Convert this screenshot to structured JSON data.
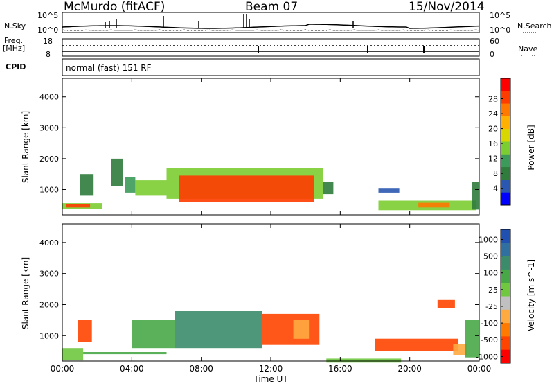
{
  "header": {
    "station": "McMurdo (fitACF)",
    "beam": "Beam 07",
    "date": "15/Nov/2014"
  },
  "noise_panel": {
    "left_label": "N.Sky",
    "right_label": "N.Search",
    "ticks_left": [
      "10^5",
      "10^0"
    ],
    "ticks_right": [
      "10^5",
      "10^0"
    ]
  },
  "freq_panel": {
    "left_label_1": "Freq.",
    "left_label_2": "[MHz]",
    "ticks_left": [
      "18",
      "8"
    ],
    "right_label": "Nave",
    "ticks_right": [
      "60",
      "0"
    ]
  },
  "cpid": {
    "label": "CPID",
    "value": "normal (fast) 151 RF"
  },
  "colorbars": {
    "power": {
      "label": "Power [dB]",
      "ticks": [
        "28",
        "24",
        "20",
        "16",
        "12",
        "8",
        "4"
      ],
      "colors": [
        "#ff0000",
        "#ff3c00",
        "#ff7800",
        "#ffb000",
        "#d8d800",
        "#7ccd32",
        "#3c9a5a",
        "#2f7c3c",
        "#2a58b0",
        "#0000ff"
      ]
    },
    "velocity": {
      "label": "Velocity [m s^-1]",
      "ticks": [
        "1000",
        "500",
        "100",
        "25",
        "-25",
        "-100",
        "-500",
        "-1000"
      ],
      "colors": [
        "#2050b0",
        "#3070a0",
        "#3c8c6c",
        "#48a848",
        "#70c840",
        "#c0c0c0",
        "#ffaa40",
        "#ff7a00",
        "#ff4400",
        "#ff0000"
      ]
    }
  },
  "chart_data": [
    {
      "type": "heatmap",
      "title": "Power",
      "ylabel": "Slant Range [km]",
      "ylim": [
        180,
        4600
      ],
      "yticks": [
        "4000",
        "3000",
        "2000",
        "1000"
      ],
      "xlim": [
        0,
        24
      ],
      "xticks": [
        "00:00",
        "04:00",
        "08:00",
        "12:00",
        "16:00",
        "20:00",
        "00:00"
      ],
      "regions": [
        {
          "x0": 0.0,
          "x1": 2.3,
          "y0": 380,
          "y1": 560,
          "value": 14
        },
        {
          "x0": 0.2,
          "x1": 1.6,
          "y0": 420,
          "y1": 520,
          "value": 26
        },
        {
          "x0": 1.0,
          "x1": 1.8,
          "y0": 800,
          "y1": 1500,
          "value": 8
        },
        {
          "x0": 2.8,
          "x1": 3.5,
          "y0": 1100,
          "y1": 2000,
          "value": 7
        },
        {
          "x0": 3.6,
          "x1": 4.2,
          "y0": 900,
          "y1": 1400,
          "value": 10
        },
        {
          "x0": 4.2,
          "x1": 6.0,
          "y0": 800,
          "y1": 1300,
          "value": 14
        },
        {
          "x0": 6.0,
          "x1": 15.0,
          "y0": 700,
          "y1": 1700,
          "value": 16
        },
        {
          "x0": 6.7,
          "x1": 14.5,
          "y0": 600,
          "y1": 1450,
          "value": 26
        },
        {
          "x0": 15.0,
          "x1": 15.6,
          "y0": 850,
          "y1": 1250,
          "value": 7
        },
        {
          "x0": 18.2,
          "x1": 19.4,
          "y0": 900,
          "y1": 1050,
          "value": 6
        },
        {
          "x0": 18.2,
          "x1": 23.8,
          "y0": 330,
          "y1": 640,
          "value": 14
        },
        {
          "x0": 20.5,
          "x1": 22.3,
          "y0": 420,
          "y1": 570,
          "value": 24
        },
        {
          "x0": 23.6,
          "x1": 24.0,
          "y0": 350,
          "y1": 1250,
          "value": 8
        }
      ]
    },
    {
      "type": "heatmap",
      "title": "Velocity",
      "ylabel": "Slant Range [km]",
      "ylim": [
        180,
        4600
      ],
      "yticks": [
        "4000",
        "3000",
        "2000",
        "1000"
      ],
      "xlim": [
        0,
        24
      ],
      "xticks": [
        "00:00",
        "04:00",
        "08:00",
        "12:00",
        "16:00",
        "20:00",
        "00:00"
      ],
      "xlabel": "Time UT",
      "regions": [
        {
          "x0": 0.0,
          "x1": 1.2,
          "y0": 200,
          "y1": 600,
          "value": 60
        },
        {
          "x0": 1.2,
          "x1": 6.0,
          "y0": 400,
          "y1": 470,
          "value": 200
        },
        {
          "x0": 0.9,
          "x1": 1.7,
          "y0": 800,
          "y1": 1500,
          "value": -200
        },
        {
          "x0": 4.0,
          "x1": 6.5,
          "y0": 600,
          "y1": 1500,
          "value": 200
        },
        {
          "x0": 6.5,
          "x1": 11.5,
          "y0": 600,
          "y1": 1800,
          "value": 300
        },
        {
          "x0": 11.5,
          "x1": 14.8,
          "y0": 700,
          "y1": 1700,
          "value": -150
        },
        {
          "x0": 13.3,
          "x1": 14.2,
          "y0": 900,
          "y1": 1500,
          "value": 0
        },
        {
          "x0": 15.2,
          "x1": 19.5,
          "y0": 150,
          "y1": 260,
          "value": 60
        },
        {
          "x0": 18.0,
          "x1": 22.8,
          "y0": 500,
          "y1": 900,
          "value": -300
        },
        {
          "x0": 21.6,
          "x1": 22.6,
          "y0": 1900,
          "y1": 2150,
          "value": -200
        },
        {
          "x0": 22.5,
          "x1": 23.3,
          "y0": 380,
          "y1": 720,
          "value": 0
        },
        {
          "x0": 23.2,
          "x1": 24.0,
          "y0": 300,
          "y1": 1500,
          "value": 200
        }
      ]
    }
  ]
}
